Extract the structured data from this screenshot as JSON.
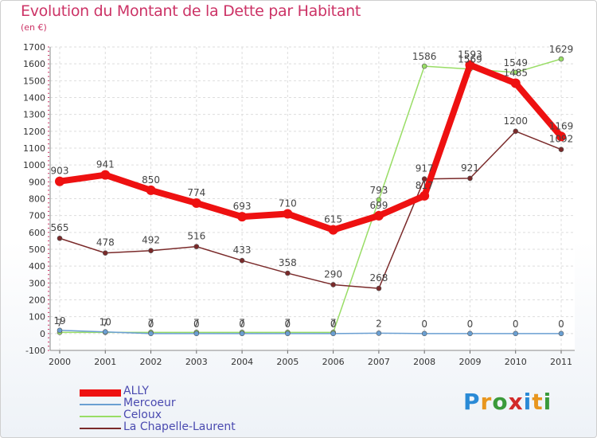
{
  "header": {
    "title": "Evolution du Montant de la Dette par Habitant",
    "subtitle": "(en €)"
  },
  "logo": {
    "letters": [
      "P",
      "r",
      "o",
      "x",
      "i",
      "t",
      "i"
    ],
    "colors": [
      "#2a8ad6",
      "#e8961e",
      "#3a9a3a",
      "#d22a2a",
      "#2a8ad6",
      "#e8961e",
      "#3a9a3a"
    ]
  },
  "chart_data": {
    "type": "line",
    "title": "Evolution du Montant de la Dette par Habitant",
    "subtitle": "(en €)",
    "categories": [
      "2000",
      "2001",
      "2002",
      "2003",
      "2004",
      "2005",
      "2006",
      "2007",
      "2008",
      "2009",
      "2010",
      "2011"
    ],
    "yticks": [
      "-100",
      "0",
      "100",
      "200",
      "300",
      "400",
      "500",
      "600",
      "700",
      "800",
      "900",
      "1000",
      "1100",
      "1200",
      "1300",
      "1400",
      "1500",
      "1600",
      "1700"
    ],
    "ylim": [
      -100,
      1700
    ],
    "grid": true,
    "legend_position": "bottom-left",
    "series": [
      {
        "name": "ALLY",
        "color": "#ee1111",
        "values": [
          903,
          941,
          850,
          774,
          693,
          710,
          615,
          699,
          817,
          1593,
          1485,
          1169
        ],
        "labels": [
          "903",
          "941",
          "850",
          "774",
          "693",
          "710",
          "615",
          "699",
          "817",
          "1593",
          "1485",
          "1169"
        ]
      },
      {
        "name": "Mercoeur",
        "color": "#6a9fd2",
        "values": [
          19,
          10,
          0,
          0,
          0,
          0,
          0,
          2,
          0,
          0,
          0,
          0
        ],
        "labels": [
          "19",
          "10",
          "0",
          "0",
          "0",
          "0",
          "0",
          "2",
          "0",
          "0",
          "0",
          "0"
        ]
      },
      {
        "name": "Celoux",
        "color": "#99dd66",
        "values": [
          7,
          7,
          7,
          7,
          7,
          7,
          7,
          793,
          1586,
          1569,
          1549,
          1629
        ],
        "labels": [
          "7",
          "7",
          "7",
          "7",
          "7",
          "7",
          "7",
          "793",
          "1586",
          "1569",
          "1549",
          "1629"
        ]
      },
      {
        "name": "La Chapelle-Laurent",
        "color": "#7a2a2a",
        "values": [
          565,
          478,
          492,
          516,
          433,
          358,
          290,
          268,
          917,
          921,
          1200,
          1092
        ],
        "labels": [
          "565",
          "478",
          "492",
          "516",
          "433",
          "358",
          "290",
          "268",
          "917",
          "921",
          "1200",
          "1092"
        ]
      }
    ]
  }
}
